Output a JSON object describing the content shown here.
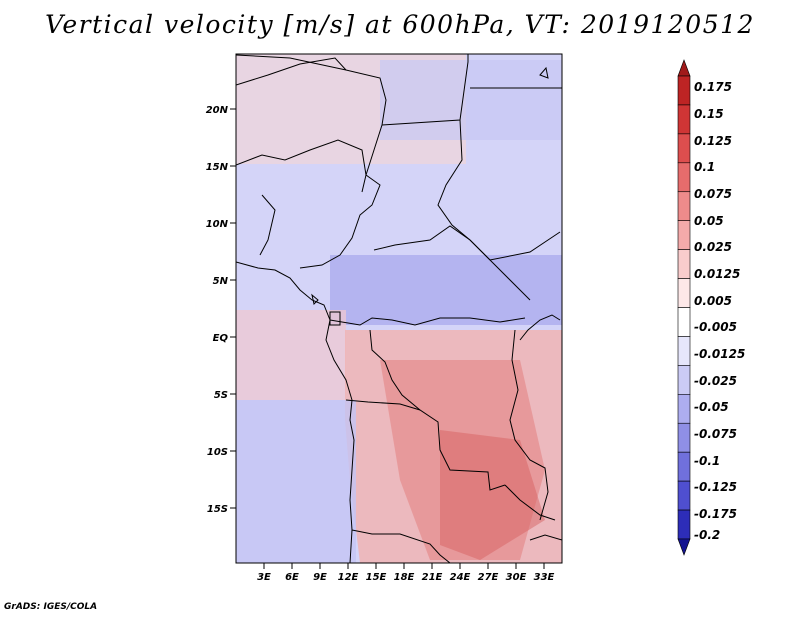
{
  "title": "Vertical velocity [m/s] at 600hPa, VT: 2019120512",
  "map": {
    "lat_labels": [
      "20N",
      "15N",
      "10N",
      "5N",
      "EQ",
      "5S",
      "10S",
      "15S"
    ],
    "lon_labels": [
      "3E",
      "6E",
      "9E",
      "12E",
      "15E",
      "18E",
      "21E",
      "24E",
      "27E",
      "30E",
      "33E"
    ]
  },
  "colorbar": {
    "levels": [
      "0.175",
      "0.15",
      "0.125",
      "0.1",
      "0.075",
      "0.05",
      "0.025",
      "0.0125",
      "0.005",
      "-0.005",
      "-0.0125",
      "-0.025",
      "-0.05",
      "-0.075",
      "-0.1",
      "-0.125",
      "-0.175",
      "-0.2"
    ],
    "colors": [
      "#a01a1a",
      "#bd2424",
      "#cf3535",
      "#dd4e4e",
      "#e66c6c",
      "#ee8b8b",
      "#f4aaaa",
      "#f9cccc",
      "#fde8e8",
      "#ffffff",
      "#e6e6fb",
      "#cbcbf5",
      "#adadf0",
      "#8f8fe6",
      "#7070dc",
      "#4f4fd0",
      "#2d2db8",
      "#141490"
    ]
  },
  "credit": "GrADS: IGES/COLA"
}
